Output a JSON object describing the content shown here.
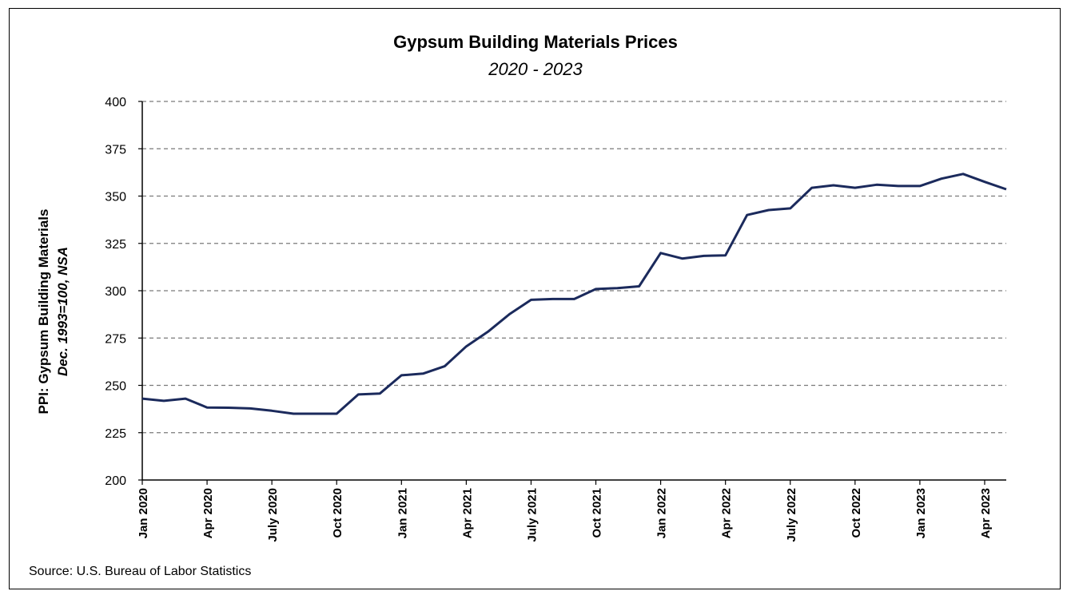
{
  "chart_data": {
    "type": "line",
    "title": "Gypsum Building Materials Prices",
    "subtitle": "2020 - 2023",
    "ylabel_line1": "PPI: Gypsum Building Materials",
    "ylabel_line2": "Dec. 1993=100, NSA",
    "xlabel": "",
    "ylim": [
      200,
      400
    ],
    "yticks": [
      200,
      225,
      250,
      275,
      300,
      325,
      350,
      375,
      400
    ],
    "grid": "horizontal dashed",
    "line_color": "#1b2a5c",
    "x_tick_labels": [
      "Jan 2020",
      "Apr 2020",
      "July 2020",
      "Oct 2020",
      "Jan 2021",
      "Apr 2021",
      "July 2021",
      "Oct 2021",
      "Jan 2022",
      "Apr 2022",
      "July 2022",
      "Oct 2022",
      "Jan 2023",
      "Apr 2023"
    ],
    "x": [
      "Jan 2020",
      "Feb 2020",
      "Mar 2020",
      "Apr 2020",
      "May 2020",
      "Jun 2020",
      "Jul 2020",
      "Aug 2020",
      "Sep 2020",
      "Oct 2020",
      "Nov 2020",
      "Dec 2020",
      "Jan 2021",
      "Feb 2021",
      "Mar 2021",
      "Apr 2021",
      "May 2021",
      "Jun 2021",
      "Jul 2021",
      "Aug 2021",
      "Sep 2021",
      "Oct 2021",
      "Nov 2021",
      "Dec 2021",
      "Jan 2022",
      "Feb 2022",
      "Mar 2022",
      "Apr 2022",
      "May 2022",
      "Jun 2022",
      "Jul 2022",
      "Aug 2022",
      "Sep 2022",
      "Oct 2022",
      "Nov 2022",
      "Dec 2022",
      "Jan 2023",
      "Feb 2023",
      "Mar 2023",
      "Apr 2023",
      "May 2023"
    ],
    "series": [
      {
        "values": [
          243,
          241.8,
          243,
          238.3,
          238.2,
          237.8,
          236.6,
          235,
          235,
          235,
          245.2,
          245.7,
          255.3,
          256.2,
          260.1,
          270.6,
          278.3,
          287.6,
          295.2,
          295.6,
          295.6,
          300.9,
          301.4,
          302.3,
          319.9,
          317,
          318.4,
          318.7,
          340,
          342.6,
          343.5,
          354.4,
          355.7,
          354.4,
          356,
          355.3,
          355.3,
          359.2,
          361.7,
          357.5,
          353.6
        ]
      }
    ]
  },
  "source": "Source: U.S. Bureau of Labor Statistics"
}
